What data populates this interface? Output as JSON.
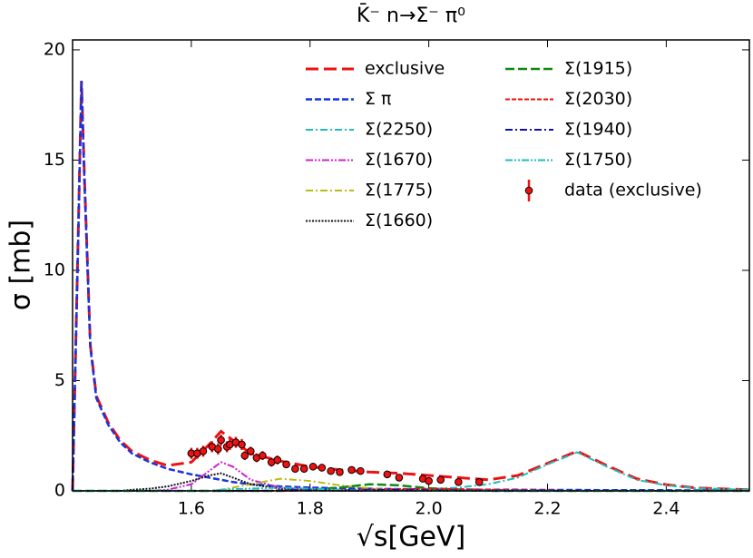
{
  "chart_data": {
    "type": "line",
    "title": "K̄⁻ n→Σ⁻ π⁰",
    "xlabel": "√s[GeV]",
    "ylabel": "σ [mb]",
    "xlim": [
      1.4,
      2.54
    ],
    "ylim": [
      0,
      20.45
    ],
    "xticks": [
      1.6,
      1.8,
      {
        "value": 2,
        "label": "2.0"
      },
      2.2,
      2.4
    ],
    "yticks": [
      0,
      5,
      10,
      15,
      20
    ],
    "legend": "upper right",
    "x": [
      1.4,
      1.41,
      1.415,
      1.42,
      1.43,
      1.44,
      1.46,
      1.48,
      1.5,
      1.53,
      1.56,
      1.6,
      1.63,
      1.65,
      1.67,
      1.7,
      1.75,
      1.8,
      1.85,
      1.9,
      1.95,
      2.0,
      2.05,
      2.1,
      2.15,
      2.2,
      2.25,
      2.3,
      2.35,
      2.4,
      2.45,
      2.54
    ],
    "series": [
      {
        "name": "exclusive",
        "color": "#ee1111",
        "dash": "14,6",
        "width": 3,
        "values": [
          0,
          12.2,
          18.6,
          14.2,
          6.6,
          4.3,
          3.1,
          2.3,
          1.8,
          1.4,
          1.15,
          1.3,
          2.1,
          2.7,
          2.3,
          1.7,
          1.35,
          1.1,
          0.95,
          0.85,
          0.8,
          0.7,
          0.6,
          0.5,
          0.7,
          1.25,
          1.8,
          1.15,
          0.55,
          0.28,
          0.13,
          0.05
        ]
      },
      {
        "name": "Σ π",
        "color": "#1a33dd",
        "dash": "7,3",
        "width": 2.5,
        "values": [
          0,
          12,
          18.6,
          14,
          6.5,
          4.2,
          3.0,
          2.2,
          1.7,
          1.3,
          1.0,
          0.75,
          0.6,
          0.5,
          0.4,
          0.3,
          0.2,
          0.15,
          0.12,
          0.1,
          0.08,
          0.07,
          0.06,
          0.05,
          0.05,
          0.04,
          0.04,
          0.03,
          0.03,
          0.03,
          0.02,
          0.02
        ]
      },
      {
        "name": "Σ(2250)",
        "color": "#22bbbb",
        "dash": "8,3,2,3",
        "width": 2,
        "values": [
          0,
          0,
          0,
          0,
          0,
          0,
          0,
          0,
          0,
          0,
          0,
          0,
          0,
          0,
          0,
          0,
          0,
          0,
          0,
          0.03,
          0.05,
          0.08,
          0.15,
          0.3,
          0.6,
          1.2,
          1.75,
          1.1,
          0.5,
          0.25,
          0.12,
          0.05
        ]
      },
      {
        "name": "Σ(1670)",
        "color": "#cc22cc",
        "dash": "8,2,2,2,2,2",
        "width": 2,
        "values": [
          0,
          0,
          0,
          0,
          0,
          0,
          0,
          0,
          0,
          0,
          0.05,
          0.3,
          0.9,
          1.3,
          1.1,
          0.5,
          0.15,
          0.05,
          0,
          0,
          0,
          0,
          0,
          0,
          0,
          0,
          0,
          0,
          0,
          0,
          0,
          0
        ]
      },
      {
        "name": "Σ(1775)",
        "color": "#bbbb11",
        "dash": "8,3,2,3",
        "width": 2,
        "values": [
          0,
          0,
          0,
          0,
          0,
          0,
          0,
          0,
          0,
          0,
          0,
          0,
          0,
          0.05,
          0.15,
          0.3,
          0.55,
          0.45,
          0.25,
          0.12,
          0.05,
          0.02,
          0,
          0,
          0,
          0,
          0,
          0,
          0,
          0,
          0,
          0
        ]
      },
      {
        "name": "Σ(1660)",
        "color": "#111111",
        "dash": "2,1.5",
        "width": 2,
        "values": [
          0,
          0,
          0,
          0,
          0,
          0,
          0,
          0,
          0.05,
          0.1,
          0.2,
          0.45,
          0.7,
          0.8,
          0.6,
          0.3,
          0.1,
          0.03,
          0,
          0,
          0,
          0,
          0,
          0,
          0,
          0,
          0,
          0,
          0,
          0,
          0,
          0
        ]
      },
      {
        "name": "Σ(1915)",
        "color": "#118811",
        "dash": "10,4",
        "width": 2.5,
        "values": [
          0,
          0,
          0,
          0,
          0,
          0,
          0,
          0,
          0,
          0,
          0,
          0,
          0,
          0,
          0,
          0,
          0,
          0.05,
          0.15,
          0.3,
          0.25,
          0.12,
          0.05,
          0,
          0,
          0,
          0,
          0,
          0,
          0,
          0,
          0
        ]
      },
      {
        "name": "Σ(2030)",
        "color": "#ee1111",
        "dash": "5,2",
        "width": 2,
        "values": [
          0,
          0,
          0,
          0,
          0,
          0,
          0,
          0,
          0,
          0,
          0,
          0,
          0,
          0,
          0,
          0,
          0,
          0.02,
          0.04,
          0.06,
          0.08,
          0.1,
          0.08,
          0.05,
          0.03,
          0.02,
          0,
          0,
          0,
          0,
          0,
          0
        ]
      },
      {
        "name": "Σ(1940)",
        "color": "#1111aa",
        "dash": "8,3,2,3",
        "width": 2,
        "values": [
          0,
          0,
          0,
          0,
          0,
          0,
          0,
          0,
          0,
          0,
          0,
          0,
          0,
          0,
          0,
          0,
          0.02,
          0.04,
          0.05,
          0.05,
          0.04,
          0.03,
          0.02,
          0,
          0,
          0,
          0,
          0,
          0,
          0,
          0,
          0
        ]
      },
      {
        "name": "Σ(1750)",
        "color": "#22bbbb",
        "dash": "8,2,2,2,2,2",
        "width": 2,
        "values": [
          0,
          0,
          0,
          0,
          0,
          0,
          0,
          0,
          0,
          0,
          0,
          0,
          0,
          0.05,
          0.08,
          0.1,
          0.15,
          0.1,
          0.04,
          0,
          0,
          0,
          0,
          0,
          0,
          0,
          0,
          0,
          0,
          0,
          0,
          0
        ]
      }
    ],
    "points": {
      "name": "data (exclusive)",
      "color": "#ee1111",
      "x": [
        1.6,
        1.61,
        1.62,
        1.635,
        1.645,
        1.65,
        1.66,
        1.665,
        1.675,
        1.685,
        1.69,
        1.7,
        1.71,
        1.72,
        1.735,
        1.745,
        1.76,
        1.775,
        1.79,
        1.805,
        1.82,
        1.835,
        1.85,
        1.87,
        1.885,
        1.93,
        1.95,
        1.99,
        2.0,
        2.02,
        2.05,
        2.085
      ],
      "values": [
        1.7,
        1.7,
        1.8,
        2.0,
        1.9,
        2.3,
        2.0,
        2.1,
        2.2,
        2.1,
        1.6,
        1.8,
        1.5,
        1.6,
        1.3,
        1.4,
        1.2,
        1.0,
        1.0,
        1.1,
        1.05,
        0.9,
        0.85,
        0.95,
        0.9,
        0.75,
        0.6,
        0.55,
        0.45,
        0.5,
        0.4,
        0.4
      ],
      "errors": [
        0.25,
        0.25,
        0.25,
        0.25,
        0.25,
        0.25,
        0.25,
        0.25,
        0.25,
        0.25,
        0.2,
        0.2,
        0.2,
        0.2,
        0.2,
        0.2,
        0.15,
        0.15,
        0.15,
        0.15,
        0.15,
        0.15,
        0.15,
        0.15,
        0.15,
        0.12,
        0.12,
        0.12,
        0.12,
        0.12,
        0.1,
        0.1
      ]
    }
  }
}
